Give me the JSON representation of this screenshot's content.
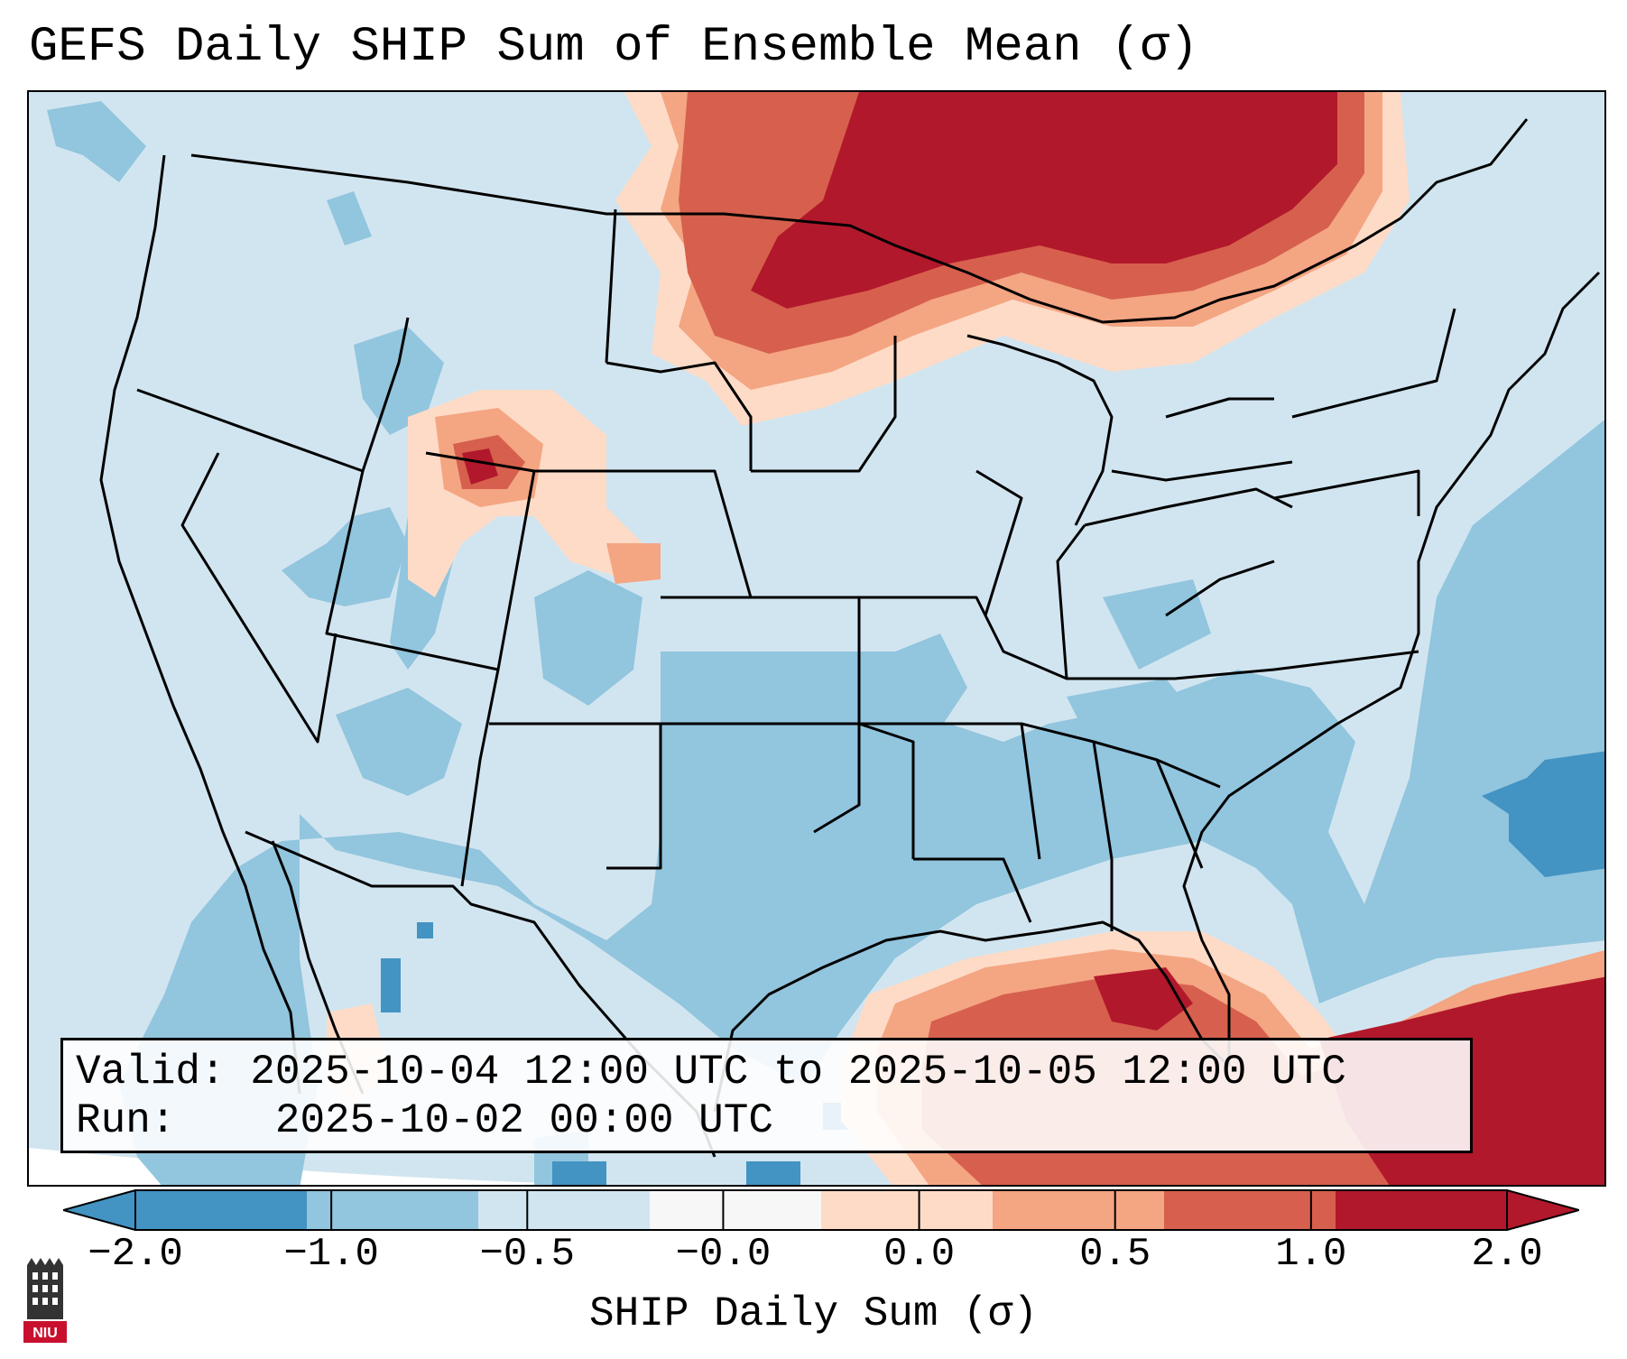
{
  "title": "GEFS Daily SHIP Sum of Ensemble Mean (σ)",
  "info": {
    "valid_label": "Valid:",
    "valid_value": "2025-10-04 12:00 UTC to 2025-10-05 12:00 UTC",
    "run_label": "Run:",
    "run_value": "2025-10-02 00:00 UTC"
  },
  "colorbar": {
    "label": "SHIP Daily Sum (σ)",
    "ticks": [
      "−2.0",
      "−1.0",
      "−0.5",
      "−0.0",
      "0.0",
      "0.5",
      "1.0",
      "2.0"
    ],
    "colors": [
      "#4393c3",
      "#92c5de",
      "#d1e5f0",
      "#f7f7f7",
      "#fddbc7",
      "#f4a582",
      "#d6604d",
      "#b2182b"
    ],
    "extend": "both"
  },
  "map": {
    "projection": "Lambert Conformal (CONUS)",
    "background_fill": "#d1e5f0",
    "boundary_color": "#000000"
  },
  "logo": {
    "text": "NIU"
  }
}
